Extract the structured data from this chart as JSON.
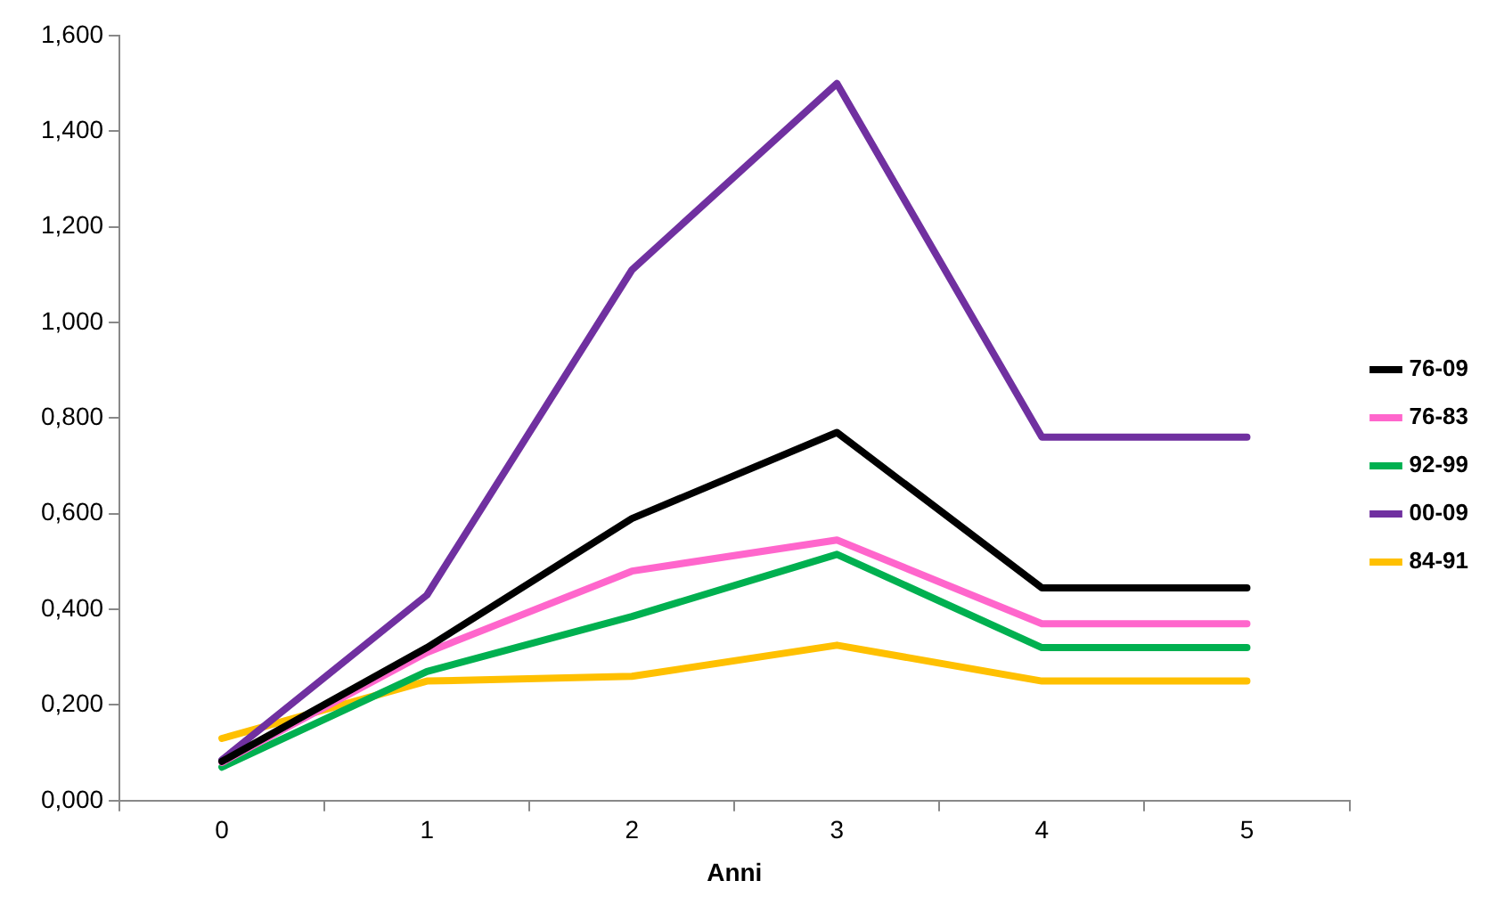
{
  "chart_data": {
    "type": "line",
    "xlabel": "Anni",
    "categories": [
      "0",
      "1",
      "2",
      "3",
      "4",
      "5"
    ],
    "series": [
      {
        "name": "76-09",
        "color": "#000000",
        "values": [
          0.082,
          0.32,
          0.59,
          0.77,
          0.445,
          0.445
        ]
      },
      {
        "name": "76-83",
        "color": "#ff66cc",
        "values": [
          0.08,
          0.31,
          0.48,
          0.545,
          0.37,
          0.37
        ]
      },
      {
        "name": "92-99",
        "color": "#00b050",
        "values": [
          0.07,
          0.27,
          0.385,
          0.515,
          0.32,
          0.32
        ]
      },
      {
        "name": "00-09",
        "color": "#7030a0",
        "values": [
          0.085,
          0.43,
          1.11,
          1.5,
          0.76,
          0.76
        ]
      },
      {
        "name": "84-91",
        "color": "#ffc000",
        "values": [
          0.13,
          0.25,
          0.26,
          0.325,
          0.25,
          0.25
        ]
      }
    ],
    "ylim": [
      0,
      1.6
    ],
    "yticks": [
      {
        "value": 0,
        "label": "0,000"
      },
      {
        "value": 0.2,
        "label": "0,200"
      },
      {
        "value": 0.4,
        "label": "0,400"
      },
      {
        "value": 0.6,
        "label": "0,600"
      },
      {
        "value": 0.8,
        "label": "0,800"
      },
      {
        "value": 1,
        "label": "1,000"
      },
      {
        "value": 1.2,
        "label": "1,200"
      },
      {
        "value": 1.4,
        "label": "1,400"
      },
      {
        "value": 1.6,
        "label": "1,600"
      }
    ],
    "grid": false,
    "legend": "right",
    "marker": "none",
    "line_style": "solid"
  }
}
